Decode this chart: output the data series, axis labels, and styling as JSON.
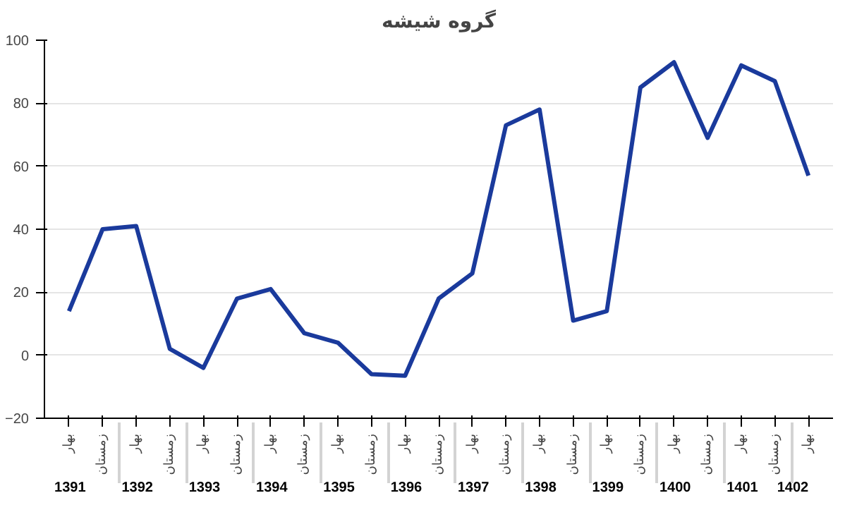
{
  "chart_data": {
    "type": "line",
    "title": "گروه شیشه",
    "categories": [
      "بهار",
      "زمستان",
      "بهار",
      "زمستان",
      "بهار",
      "زمستان",
      "بهار",
      "زمستان",
      "بهار",
      "زمستان",
      "بهار",
      "زمستان",
      "بهار",
      "زمستان",
      "بهار",
      "زمستان",
      "بهار",
      "زمستان",
      "بهار",
      "زمستان",
      "بهار",
      "زمستان",
      "بهار"
    ],
    "annotations": [
      "1391",
      "1392",
      "1393",
      "1394",
      "1395",
      "1396",
      "1397",
      "1398",
      "1399",
      "1400",
      "1401",
      "1402"
    ],
    "series": [
      {
        "color": "#1a3a9c",
        "values": [
          14,
          40,
          41,
          2,
          -4,
          18,
          21,
          7,
          4,
          -6,
          -6.5,
          18,
          26,
          73,
          78,
          11,
          14,
          85,
          93,
          69,
          92,
          87,
          57
        ]
      }
    ],
    "ylim": [
      -20,
      100
    ],
    "yticks": [
      -20,
      0,
      20,
      40,
      60,
      80,
      100
    ],
    "grid": "y",
    "marker": "none",
    "line_style": "solid"
  }
}
